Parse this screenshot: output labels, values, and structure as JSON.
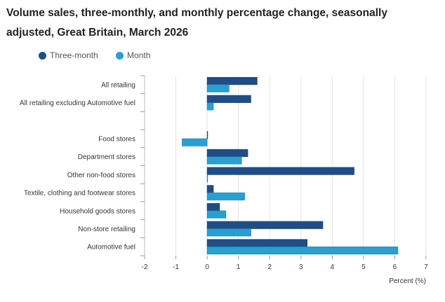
{
  "title": "Volume sales, three-monthly, and monthly percentage change, seasonally adjusted, Great Britain, March 2026",
  "chart_data": {
    "type": "bar",
    "orientation": "horizontal",
    "title": "Volume sales, three-monthly, and monthly percentage change, seasonally adjusted, Great Britain, March 2026",
    "xlabel": "Percent (%)",
    "ylabel": "",
    "xlim": [
      -2,
      7
    ],
    "xticks": [
      "-2",
      "-1",
      "0",
      "1",
      "2",
      "3",
      "4",
      "5",
      "6",
      "7"
    ],
    "grid": true,
    "legend_position": "top-left",
    "categories": [
      "All retailing",
      "All retailing excluding Automotive fuel",
      "",
      "Food stores",
      "Department stores",
      "Other non-food stores",
      "Textile, clothing and footwear stores",
      "Household goods stores",
      "Non-store retailing",
      "Automotive fuel"
    ],
    "series": [
      {
        "name": "Three-month",
        "color": "#1f4e86",
        "values": [
          1.6,
          1.4,
          null,
          0.0,
          1.3,
          4.7,
          0.2,
          0.4,
          3.7,
          3.2
        ]
      },
      {
        "name": "Month",
        "color": "#2a9fd0",
        "values": [
          0.7,
          0.2,
          null,
          -0.8,
          1.1,
          0.0,
          1.2,
          0.6,
          1.4,
          6.1
        ]
      }
    ]
  }
}
